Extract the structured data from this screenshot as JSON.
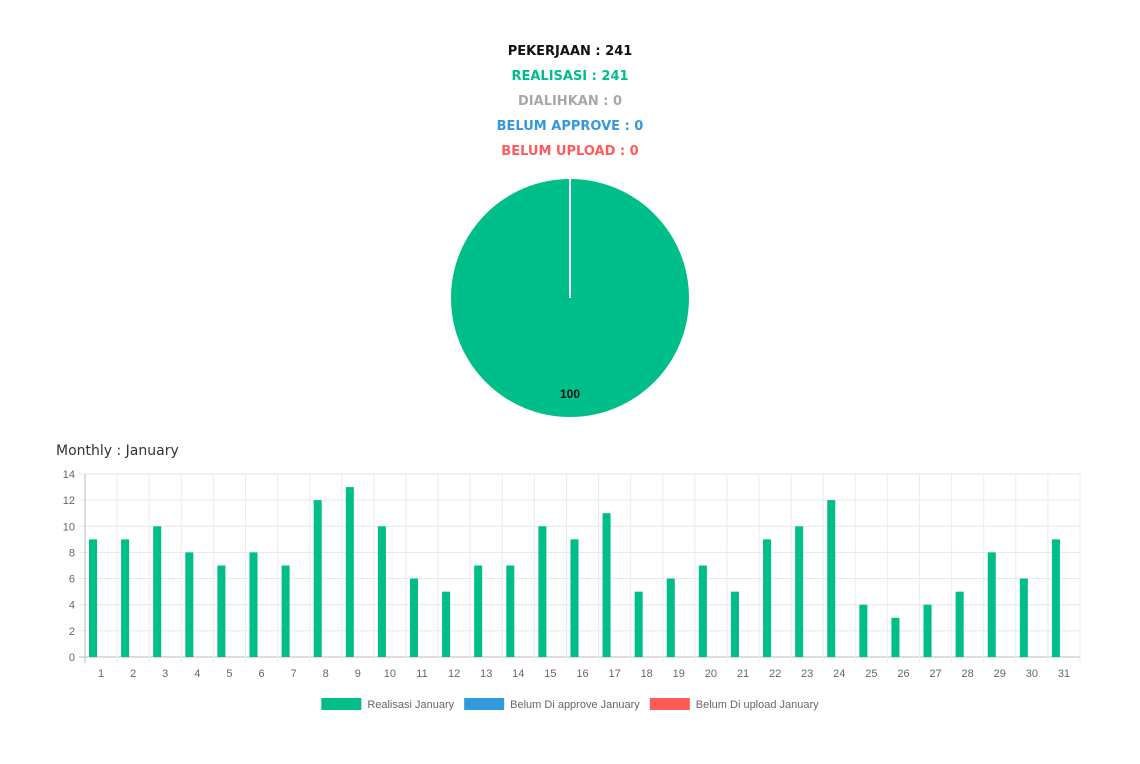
{
  "summary": {
    "pekerjaan": "PEKERJAAN : 241",
    "realisasi": "REALISASI : 241",
    "dialihkan": "DIALIHKAN : 0",
    "belum_approve": "BELUM APPROVE : 0",
    "belum_upload": "BELUM UPLOAD : 0"
  },
  "colors": {
    "pekerjaan": "#111111",
    "realisasi": "#00be8a",
    "dialihkan": "#a8a8a8",
    "belum_approve": "#3399dd",
    "belum_upload": "#ff5a5a"
  },
  "monthly_title": "Monthly : January",
  "chart_data": [
    {
      "type": "pie",
      "categories": [
        "Realisasi",
        "Dialihkan",
        "Belum Approve",
        "Belum Upload"
      ],
      "values": [
        100,
        0,
        0,
        0
      ],
      "colors": [
        "#00be8a",
        "#a8a8a8",
        "#3399dd",
        "#ff5a5a"
      ],
      "data_labels": [
        "100"
      ]
    },
    {
      "type": "bar",
      "title": "Monthly : January",
      "categories": [
        "1",
        "2",
        "3",
        "4",
        "5",
        "6",
        "7",
        "8",
        "9",
        "10",
        "11",
        "12",
        "13",
        "14",
        "15",
        "16",
        "17",
        "18",
        "19",
        "20",
        "21",
        "22",
        "23",
        "24",
        "25",
        "26",
        "27",
        "28",
        "29",
        "30",
        "31"
      ],
      "series": [
        {
          "name": "Realisasi January",
          "color": "#00be8a",
          "values": [
            9,
            9,
            10,
            8,
            7,
            8,
            7,
            12,
            13,
            10,
            6,
            5,
            7,
            7,
            10,
            9,
            11,
            5,
            6,
            7,
            5,
            9,
            10,
            12,
            4,
            3,
            4,
            5,
            8,
            6,
            9
          ]
        },
        {
          "name": "Belum Di approve January",
          "color": "#3399dd",
          "values": [
            0,
            0,
            0,
            0,
            0,
            0,
            0,
            0,
            0,
            0,
            0,
            0,
            0,
            0,
            0,
            0,
            0,
            0,
            0,
            0,
            0,
            0,
            0,
            0,
            0,
            0,
            0,
            0,
            0,
            0,
            0
          ]
        },
        {
          "name": "Belum Di upload January",
          "color": "#ff5a5a",
          "values": [
            0,
            0,
            0,
            0,
            0,
            0,
            0,
            0,
            0,
            0,
            0,
            0,
            0,
            0,
            0,
            0,
            0,
            0,
            0,
            0,
            0,
            0,
            0,
            0,
            0,
            0,
            0,
            0,
            0,
            0,
            0
          ]
        }
      ],
      "ylim": [
        0,
        14
      ],
      "yticks": [
        0,
        2,
        4,
        6,
        8,
        10,
        12,
        14
      ],
      "grid": true,
      "legend": "bottom"
    }
  ]
}
